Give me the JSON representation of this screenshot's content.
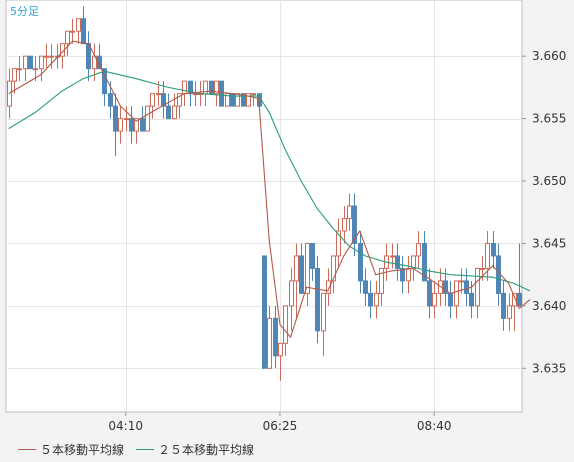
{
  "chart_data": {
    "type": "candlestick",
    "timeframe_label": "5分足",
    "y_ticks": [
      "3.660",
      "3.655",
      "3.650",
      "3.645",
      "3.640",
      "3.635"
    ],
    "x_ticks": [
      "04:10",
      "06:25",
      "08:40"
    ],
    "ylim": [
      3.6315,
      3.6645
    ],
    "grid": true,
    "up_color": "#cc6b5a",
    "down_color": "#4f86b5",
    "ma5_color": "#b25a4a",
    "ma25_color": "#2a9d78",
    "legend": [
      {
        "label": "５本移動平均線",
        "color": "#b25a4a"
      },
      {
        "label": "２５本移動平均線",
        "color": "#2a9d78"
      }
    ],
    "x_tick_positions": [
      22,
      51,
      80
    ],
    "candles": [
      [
        3.656,
        3.659,
        3.655,
        3.658
      ],
      [
        3.658,
        3.659,
        3.657,
        3.659
      ],
      [
        3.659,
        3.66,
        3.658,
        3.659
      ],
      [
        3.659,
        3.66,
        3.658,
        3.66
      ],
      [
        3.66,
        3.66,
        3.659,
        3.659
      ],
      [
        3.659,
        3.66,
        3.658,
        3.659
      ],
      [
        3.659,
        3.66,
        3.658,
        3.66
      ],
      [
        3.66,
        3.661,
        3.659,
        3.66
      ],
      [
        3.66,
        3.661,
        3.659,
        3.66
      ],
      [
        3.66,
        3.661,
        3.659,
        3.66
      ],
      [
        3.66,
        3.661,
        3.659,
        3.661
      ],
      [
        3.661,
        3.662,
        3.66,
        3.662
      ],
      [
        3.662,
        3.663,
        3.661,
        3.662
      ],
      [
        3.662,
        3.663,
        3.661,
        3.663
      ],
      [
        3.663,
        3.664,
        3.661,
        3.661
      ],
      [
        3.661,
        3.662,
        3.658,
        3.659
      ],
      [
        3.659,
        3.661,
        3.658,
        3.66
      ],
      [
        3.66,
        3.661,
        3.659,
        3.659
      ],
      [
        3.659,
        3.659,
        3.656,
        3.657
      ],
      [
        3.657,
        3.658,
        3.655,
        3.656
      ],
      [
        3.656,
        3.657,
        3.652,
        3.654
      ],
      [
        3.654,
        3.656,
        3.653,
        3.655
      ],
      [
        3.655,
        3.656,
        3.654,
        3.655
      ],
      [
        3.655,
        3.656,
        3.653,
        3.654
      ],
      [
        3.654,
        3.655,
        3.653,
        3.655
      ],
      [
        3.655,
        3.656,
        3.654,
        3.654
      ],
      [
        3.654,
        3.656,
        3.654,
        3.656
      ],
      [
        3.656,
        3.657,
        3.655,
        3.657
      ],
      [
        3.657,
        3.658,
        3.656,
        3.657
      ],
      [
        3.657,
        3.658,
        3.655,
        3.656
      ],
      [
        3.656,
        3.657,
        3.655,
        3.655
      ],
      [
        3.655,
        3.657,
        3.655,
        3.656
      ],
      [
        3.656,
        3.657,
        3.655,
        3.657
      ],
      [
        3.657,
        3.658,
        3.656,
        3.658
      ],
      [
        3.658,
        3.658,
        3.656,
        3.657
      ],
      [
        3.657,
        3.658,
        3.656,
        3.657
      ],
      [
        3.657,
        3.658,
        3.656,
        3.657
      ],
      [
        3.657,
        3.658,
        3.656,
        3.658
      ],
      [
        3.658,
        3.658,
        3.657,
        3.657
      ],
      [
        3.657,
        3.658,
        3.656,
        3.658
      ],
      [
        3.658,
        3.658,
        3.656,
        3.656
      ],
      [
        3.656,
        3.657,
        3.656,
        3.657
      ],
      [
        3.657,
        3.657,
        3.656,
        3.656
      ],
      [
        3.656,
        3.657,
        3.656,
        3.657
      ],
      [
        3.657,
        3.657,
        3.656,
        3.656
      ],
      [
        3.656,
        3.657,
        3.656,
        3.657
      ],
      [
        3.657,
        3.657,
        3.656,
        3.657
      ],
      [
        3.657,
        3.657,
        3.656,
        3.656
      ],
      [
        3.644,
        3.644,
        3.635,
        3.635
      ],
      [
        3.635,
        3.64,
        3.635,
        3.639
      ],
      [
        3.639,
        3.64,
        3.635,
        3.636
      ],
      [
        3.636,
        3.637,
        3.634,
        3.637
      ],
      [
        3.637,
        3.64,
        3.636,
        3.64
      ],
      [
        3.64,
        3.643,
        3.638,
        3.642
      ],
      [
        3.642,
        3.645,
        3.639,
        3.644
      ],
      [
        3.644,
        3.645,
        3.641,
        3.641
      ],
      [
        3.641,
        3.645,
        3.64,
        3.645
      ],
      [
        3.645,
        3.645,
        3.642,
        3.643
      ],
      [
        3.643,
        3.644,
        3.637,
        3.638
      ],
      [
        3.638,
        3.641,
        3.636,
        3.641
      ],
      [
        3.641,
        3.643,
        3.64,
        3.642
      ],
      [
        3.642,
        3.644,
        3.641,
        3.644
      ],
      [
        3.644,
        3.647,
        3.643,
        3.646
      ],
      [
        3.646,
        3.648,
        3.645,
        3.647
      ],
      [
        3.647,
        3.649,
        3.646,
        3.648
      ],
      [
        3.648,
        3.649,
        3.644,
        3.645
      ],
      [
        3.645,
        3.646,
        3.641,
        3.642
      ],
      [
        3.642,
        3.643,
        3.64,
        3.641
      ],
      [
        3.641,
        3.642,
        3.639,
        3.64
      ],
      [
        3.64,
        3.642,
        3.639,
        3.641
      ],
      [
        3.641,
        3.643,
        3.64,
        3.643
      ],
      [
        3.643,
        3.645,
        3.642,
        3.644
      ],
      [
        3.644,
        3.645,
        3.643,
        3.644
      ],
      [
        3.644,
        3.645,
        3.642,
        3.643
      ],
      [
        3.643,
        3.644,
        3.641,
        3.642
      ],
      [
        3.642,
        3.644,
        3.641,
        3.643
      ],
      [
        3.643,
        3.644,
        3.642,
        3.644
      ],
      [
        3.644,
        3.646,
        3.643,
        3.645
      ],
      [
        3.645,
        3.646,
        3.642,
        3.642
      ],
      [
        3.642,
        3.643,
        3.639,
        3.64
      ],
      [
        3.64,
        3.642,
        3.639,
        3.641
      ],
      [
        3.641,
        3.643,
        3.64,
        3.642
      ],
      [
        3.642,
        3.643,
        3.64,
        3.641
      ],
      [
        3.641,
        3.642,
        3.639,
        3.64
      ],
      [
        3.64,
        3.642,
        3.639,
        3.642
      ],
      [
        3.642,
        3.643,
        3.641,
        3.642
      ],
      [
        3.642,
        3.643,
        3.64,
        3.641
      ],
      [
        3.641,
        3.642,
        3.639,
        3.64
      ],
      [
        3.64,
        3.643,
        3.639,
        3.643
      ],
      [
        3.643,
        3.644,
        3.642,
        3.643
      ],
      [
        3.643,
        3.646,
        3.642,
        3.645
      ],
      [
        3.645,
        3.646,
        3.643,
        3.644
      ],
      [
        3.644,
        3.645,
        3.64,
        3.641
      ],
      [
        3.641,
        3.642,
        3.638,
        3.639
      ],
      [
        3.639,
        3.641,
        3.638,
        3.64
      ],
      [
        3.64,
        3.641,
        3.638,
        3.641
      ],
      [
        3.641,
        3.645,
        3.64,
        3.64
      ]
    ],
    "ma5": [
      [
        0,
        3.657
      ],
      [
        6,
        3.6585
      ],
      [
        12,
        3.6612
      ],
      [
        15,
        3.661
      ],
      [
        18,
        3.6585
      ],
      [
        21,
        3.656
      ],
      [
        24,
        3.6548
      ],
      [
        28,
        3.6558
      ],
      [
        33,
        3.657
      ],
      [
        38,
        3.6572
      ],
      [
        44,
        3.6569
      ],
      [
        47,
        3.6566
      ],
      [
        49,
        3.6452
      ],
      [
        51,
        3.6385
      ],
      [
        53,
        3.6375
      ],
      [
        56,
        3.6415
      ],
      [
        60,
        3.6412
      ],
      [
        63,
        3.644
      ],
      [
        66,
        3.646
      ],
      [
        69,
        3.6425
      ],
      [
        72,
        3.6428
      ],
      [
        76,
        3.643
      ],
      [
        79,
        3.6422
      ],
      [
        83,
        3.641
      ],
      [
        87,
        3.6415
      ],
      [
        91,
        3.6432
      ],
      [
        94,
        3.6418
      ],
      [
        96,
        3.6398
      ],
      [
        98,
        3.6405
      ]
    ],
    "ma25": [
      [
        0,
        3.6542
      ],
      [
        5,
        3.6555
      ],
      [
        10,
        3.6572
      ],
      [
        14,
        3.6582
      ],
      [
        18,
        3.6588
      ],
      [
        24,
        3.6582
      ],
      [
        30,
        3.6575
      ],
      [
        36,
        3.657
      ],
      [
        42,
        3.6568
      ],
      [
        47,
        3.6568
      ],
      [
        49,
        3.6555
      ],
      [
        52,
        3.6525
      ],
      [
        55,
        3.65
      ],
      [
        58,
        3.6478
      ],
      [
        61,
        3.6462
      ],
      [
        64,
        3.6448
      ],
      [
        67,
        3.644
      ],
      [
        71,
        3.6435
      ],
      [
        75,
        3.6432
      ],
      [
        79,
        3.6428
      ],
      [
        83,
        3.6425
      ],
      [
        87,
        3.6424
      ],
      [
        91,
        3.6423
      ],
      [
        95,
        3.6418
      ],
      [
        98,
        3.6412
      ]
    ]
  }
}
